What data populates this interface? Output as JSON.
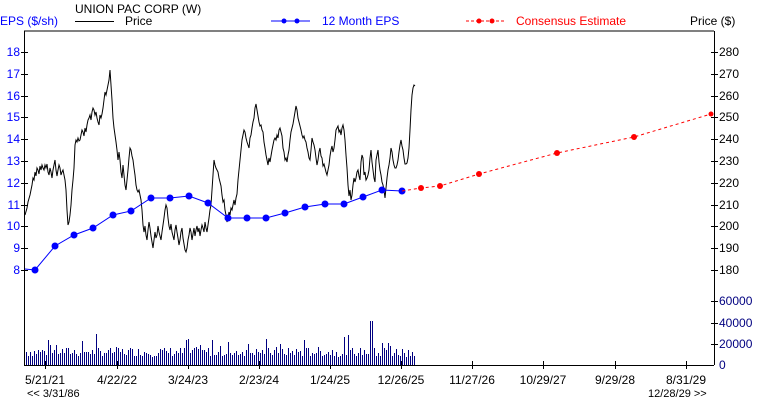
{
  "header": {
    "left_axis_title": "EPS ($/sh)",
    "company": "UNION PAC CORP (W)",
    "legend_price": "Price",
    "legend_eps": "12 Month EPS",
    "legend_consensus": "Consensus Estimate",
    "right_axis_title": "Price ($)"
  },
  "footer": {
    "range_start": "<< 3/31/86",
    "range_end": "12/28/29 >>"
  },
  "colors": {
    "price": "#000000",
    "eps": "#0000ff",
    "consensus": "#ff0000",
    "volume": "#000080",
    "eps_axis": "#0000ff",
    "volume_axis": "#000080"
  },
  "axes": {
    "eps_ticks": [
      "18",
      "17",
      "16",
      "15",
      "14",
      "13",
      "12",
      "11",
      "10",
      "9",
      "8"
    ],
    "price_ticks": [
      "280",
      "270",
      "260",
      "250",
      "240",
      "230",
      "220",
      "210",
      "200",
      "190",
      "180"
    ],
    "volume_ticks": [
      "60000",
      "40000",
      "20000",
      "0"
    ],
    "x_ticks": [
      "5/21/21",
      "4/22/22",
      "3/24/23",
      "2/23/24",
      "1/24/25",
      "12/26/25",
      "11/27/26",
      "10/29/27",
      "9/29/28",
      "8/31/29"
    ]
  },
  "chart_data": {
    "type": "line",
    "title": "UNION PAC CORP (W)",
    "xlabel": "",
    "ylabel": "EPS ($/sh)",
    "ylabel_right": "Price ($)",
    "x_tick_labels": [
      "5/21/21",
      "4/22/22",
      "3/24/23",
      "2/23/24",
      "1/24/25",
      "12/26/25",
      "11/27/26",
      "10/29/27",
      "9/29/28",
      "8/31/29"
    ],
    "x_range": [
      "3/31/86",
      "12/28/29"
    ],
    "ylim_eps": [
      7.4,
      19.0
    ],
    "ylim_price": [
      174,
      290
    ],
    "ylim_volume": [
      0,
      60000
    ],
    "grid": false,
    "legend_position": "top",
    "series": [
      {
        "name": "12 Month EPS",
        "axis": "left",
        "style": "solid-with-markers",
        "color": "#0000ff",
        "x": [
          "2021-03",
          "2021-06",
          "2021-09",
          "2021-12",
          "2022-03",
          "2022-06",
          "2022-09",
          "2022-12",
          "2023-03",
          "2023-06",
          "2023-09",
          "2023-12",
          "2024-03",
          "2024-06",
          "2024-09",
          "2024-12",
          "2025-03",
          "2025-06",
          "2025-09",
          "2025-12"
        ],
        "values": [
          8.0,
          9.1,
          9.6,
          9.9,
          10.5,
          10.7,
          11.3,
          11.3,
          11.4,
          11.1,
          10.4,
          10.4,
          10.4,
          10.6,
          10.9,
          11.0,
          11.0,
          11.4,
          11.7,
          11.6
        ]
      },
      {
        "name": "Consensus Estimate",
        "axis": "left",
        "style": "dashed-with-markers",
        "color": "#ff0000",
        "x": [
          "2025-12",
          "2026-03",
          "2026-06",
          "2026-12",
          "2027-12",
          "2028-12",
          "2029-12"
        ],
        "values": [
          11.6,
          11.8,
          11.8,
          12.4,
          13.4,
          14.1,
          15.2
        ]
      },
      {
        "name": "Price",
        "axis": "right",
        "style": "solid",
        "color": "#000000",
        "x": [
          "2021-03",
          "2021-05",
          "2021-07",
          "2021-09",
          "2021-11",
          "2022-01",
          "2022-03",
          "2022-04",
          "2022-06",
          "2022-08",
          "2022-10",
          "2022-12",
          "2023-02",
          "2023-04",
          "2023-06",
          "2023-08",
          "2023-10",
          "2023-12",
          "2024-02",
          "2024-04",
          "2024-06",
          "2024-08",
          "2024-10",
          "2024-12",
          "2025-02",
          "2025-04",
          "2025-06",
          "2025-08",
          "2025-10",
          "2025-12",
          "2026-01"
        ],
        "values": [
          205,
          222,
          218,
          222,
          202,
          240,
          245,
          271,
          228,
          235,
          197,
          228,
          194,
          200,
          233,
          203,
          238,
          250,
          230,
          252,
          240,
          253,
          235,
          236,
          232,
          213,
          227,
          215,
          235,
          228,
          262
        ]
      },
      {
        "name": "Volume",
        "axis": "volume",
        "style": "bar",
        "color": "#000080",
        "note": "weekly volume, typically 8000-20000, peak ~42000 in early 2025"
      }
    ]
  }
}
